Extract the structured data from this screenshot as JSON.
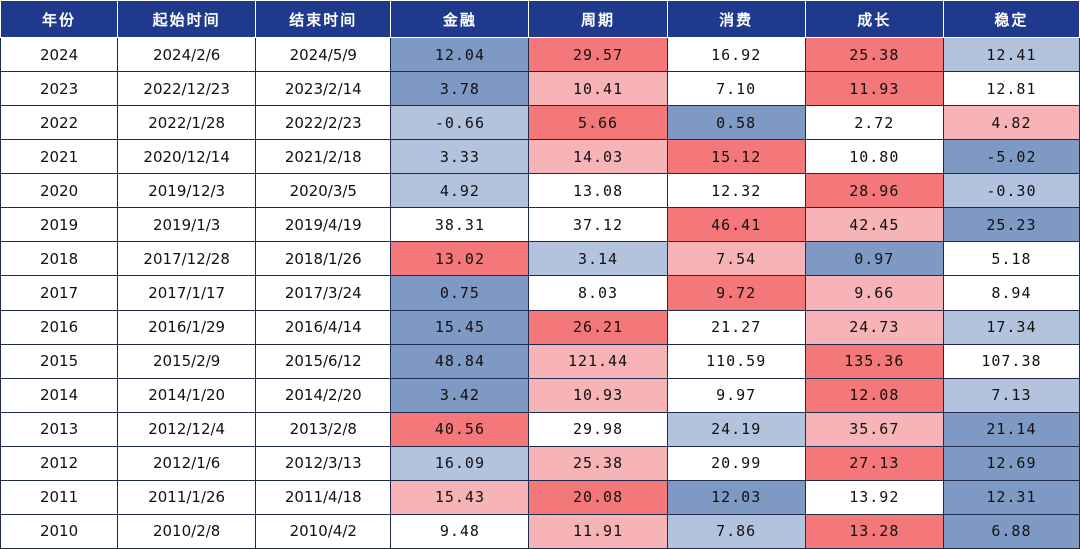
{
  "table": {
    "headers": [
      "年份",
      "起始时间",
      "结束时间",
      "金融",
      "周期",
      "消费",
      "成长",
      "稳定"
    ],
    "rows": [
      {
        "year": "2024",
        "start": "2024/2/6",
        "end": "2024/5/9",
        "values": [
          "12.04",
          "29.57",
          "16.92",
          "25.38",
          "12.41"
        ],
        "colors": [
          "#7f99c5",
          "#f4777a",
          "#ffffff",
          "#f4777a",
          "#b3c3de"
        ]
      },
      {
        "year": "2023",
        "start": "2022/12/23",
        "end": "2023/2/14",
        "values": [
          "3.78",
          "10.41",
          "7.10",
          "11.93",
          "12.81"
        ],
        "colors": [
          "#7f99c5",
          "#f6b4b7",
          "#ffffff",
          "#f4777a",
          "#ffffff"
        ]
      },
      {
        "year": "2022",
        "start": "2022/1/28",
        "end": "2022/2/23",
        "values": [
          "-0.66",
          "5.66",
          "0.58",
          "2.72",
          "4.82"
        ],
        "colors": [
          "#b3c3de",
          "#f4777a",
          "#7f99c5",
          "#ffffff",
          "#f6b4b7"
        ]
      },
      {
        "year": "2021",
        "start": "2020/12/14",
        "end": "2021/2/18",
        "values": [
          "3.33",
          "14.03",
          "15.12",
          "10.80",
          "-5.02"
        ],
        "colors": [
          "#b3c3de",
          "#f6b4b7",
          "#f4777a",
          "#ffffff",
          "#7f99c5"
        ]
      },
      {
        "year": "2020",
        "start": "2019/12/3",
        "end": "2020/3/5",
        "values": [
          "4.92",
          "13.08",
          "12.32",
          "28.96",
          "-0.30"
        ],
        "colors": [
          "#b3c3de",
          "#ffffff",
          "#ffffff",
          "#f4777a",
          "#b3c3de"
        ]
      },
      {
        "year": "2019",
        "start": "2019/1/3",
        "end": "2019/4/19",
        "values": [
          "38.31",
          "37.12",
          "46.41",
          "42.45",
          "25.23"
        ],
        "colors": [
          "#ffffff",
          "#ffffff",
          "#f4777a",
          "#f6b4b7",
          "#7f99c5"
        ]
      },
      {
        "year": "2018",
        "start": "2017/12/28",
        "end": "2018/1/26",
        "values": [
          "13.02",
          "3.14",
          "7.54",
          "0.97",
          "5.18"
        ],
        "colors": [
          "#f4777a",
          "#b3c3de",
          "#f6b4b7",
          "#7f99c5",
          "#ffffff"
        ]
      },
      {
        "year": "2017",
        "start": "2017/1/17",
        "end": "2017/3/24",
        "values": [
          "0.75",
          "8.03",
          "9.72",
          "9.66",
          "8.94"
        ],
        "colors": [
          "#7f99c5",
          "#ffffff",
          "#f4777a",
          "#f6b4b7",
          "#ffffff"
        ]
      },
      {
        "year": "2016",
        "start": "2016/1/29",
        "end": "2016/4/14",
        "values": [
          "15.45",
          "26.21",
          "21.27",
          "24.73",
          "17.34"
        ],
        "colors": [
          "#7f99c5",
          "#f4777a",
          "#ffffff",
          "#f6b4b7",
          "#b3c3de"
        ]
      },
      {
        "year": "2015",
        "start": "2015/2/9",
        "end": "2015/6/12",
        "values": [
          "48.84",
          "121.44",
          "110.59",
          "135.36",
          "107.38"
        ],
        "colors": [
          "#7f99c5",
          "#f6b4b7",
          "#ffffff",
          "#f4777a",
          "#ffffff"
        ]
      },
      {
        "year": "2014",
        "start": "2014/1/20",
        "end": "2014/2/20",
        "values": [
          "3.42",
          "10.93",
          "9.97",
          "12.08",
          "7.13"
        ],
        "colors": [
          "#7f99c5",
          "#f6b4b7",
          "#ffffff",
          "#f4777a",
          "#b3c3de"
        ]
      },
      {
        "year": "2013",
        "start": "2012/12/4",
        "end": "2013/2/8",
        "values": [
          "40.56",
          "29.98",
          "24.19",
          "35.67",
          "21.14"
        ],
        "colors": [
          "#f4777a",
          "#ffffff",
          "#b3c3de",
          "#f6b4b7",
          "#7f99c5"
        ]
      },
      {
        "year": "2012",
        "start": "2012/1/6",
        "end": "2012/3/13",
        "values": [
          "16.09",
          "25.38",
          "20.99",
          "27.13",
          "12.69"
        ],
        "colors": [
          "#b3c3de",
          "#f6b4b7",
          "#ffffff",
          "#f4777a",
          "#7f99c5"
        ]
      },
      {
        "year": "2011",
        "start": "2011/1/26",
        "end": "2011/4/18",
        "values": [
          "15.43",
          "20.08",
          "12.03",
          "13.92",
          "12.31"
        ],
        "colors": [
          "#f6b4b7",
          "#f4777a",
          "#7f99c5",
          "#ffffff",
          "#7f99c5"
        ]
      },
      {
        "year": "2010",
        "start": "2010/2/8",
        "end": "2010/4/2",
        "values": [
          "9.48",
          "11.91",
          "7.86",
          "13.28",
          "6.88"
        ],
        "colors": [
          "#ffffff",
          "#f6b4b7",
          "#b3c3de",
          "#f4777a",
          "#7f99c5"
        ]
      }
    ]
  }
}
